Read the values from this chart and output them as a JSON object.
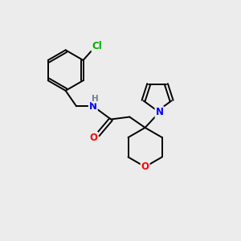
{
  "background_color": "#ececec",
  "bond_color": "#000000",
  "atom_colors": {
    "Cl": "#00aa00",
    "N": "#0000ff",
    "O": "#ff0000",
    "H": "#708090",
    "C": "#000000"
  },
  "figsize": [
    3.0,
    3.0
  ],
  "dpi": 100
}
